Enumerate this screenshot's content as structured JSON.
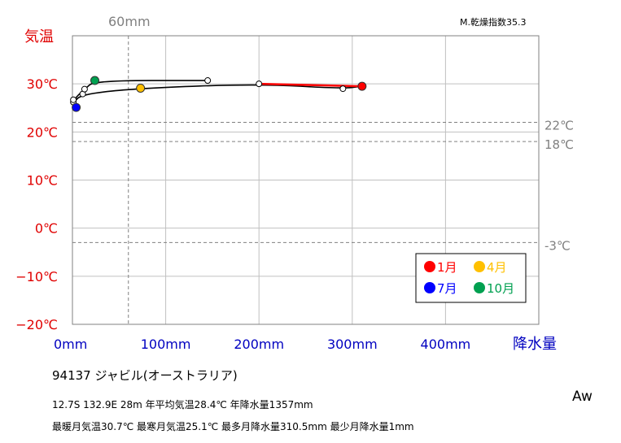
{
  "chart_data": {
    "type": "line",
    "title": "",
    "index_label": "M.乾燥指数35.3",
    "ylabel": "気温",
    "xlabel": "降水量",
    "xlim": [
      0,
      500
    ],
    "ylim": [
      -20,
      40
    ],
    "x_ticks": [
      0,
      100,
      200,
      300,
      400
    ],
    "x_tick_labels": [
      "0mm",
      "100mm",
      "200mm",
      "300mm",
      "400mm"
    ],
    "y_ticks": [
      -20,
      -10,
      0,
      10,
      20,
      30
    ],
    "y_tick_labels": [
      "−20℃",
      "−10℃",
      "0℃",
      "10℃",
      "20℃",
      "30℃"
    ],
    "ref_lines_y": [
      {
        "value": 22,
        "label": "22℃"
      },
      {
        "value": 18,
        "label": "18℃"
      },
      {
        "value": -3,
        "label": "-3℃"
      }
    ],
    "ref_line_x": {
      "value": 60,
      "label": "60mm"
    },
    "months": [
      {
        "month": 1,
        "precip": 310.5,
        "temp": 29.5
      },
      {
        "month": 2,
        "precip": 290,
        "temp": 29.0
      },
      {
        "month": 3,
        "precip": 200,
        "temp": 30.0
      },
      {
        "month": 4,
        "precip": 73,
        "temp": 29.1
      },
      {
        "month": 5,
        "precip": 11,
        "temp": 27.9
      },
      {
        "month": 6,
        "precip": 1,
        "temp": 26.2
      },
      {
        "month": 7,
        "precip": 4,
        "temp": 25.1
      },
      {
        "month": 8,
        "precip": 1,
        "temp": 26.7
      },
      {
        "month": 9,
        "precip": 13,
        "temp": 28.9
      },
      {
        "month": 10,
        "precip": 24,
        "temp": 30.7
      },
      {
        "month": 11,
        "precip": 145,
        "temp": 30.7
      }
    ],
    "legend": [
      {
        "label": "1月",
        "month": 1,
        "color": "#ff0000"
      },
      {
        "label": "4月",
        "month": 4,
        "color": "#ffc000"
      },
      {
        "label": "7月",
        "month": 7,
        "color": "#0000ff"
      },
      {
        "label": "10月",
        "month": 10,
        "color": "#00a050"
      }
    ],
    "colors": {
      "line": "#000000",
      "dec_jan": "#ff0000",
      "grid": "#c0c0c0",
      "ref": "#808080",
      "temp_axis": "#e00000",
      "precip_axis": "#0000c0"
    }
  },
  "station": {
    "title": "94137  ジャビル(オーストラリア)",
    "line1": "12.7S  132.9E 28m  年平均気温28.4℃ 年降水量1357mm",
    "line2": "最暖月気温30.7℃ 最寒月気温25.1℃ 最多月降水量310.5mm 最少月降水量1mm"
  },
  "climate_class": "Aw"
}
